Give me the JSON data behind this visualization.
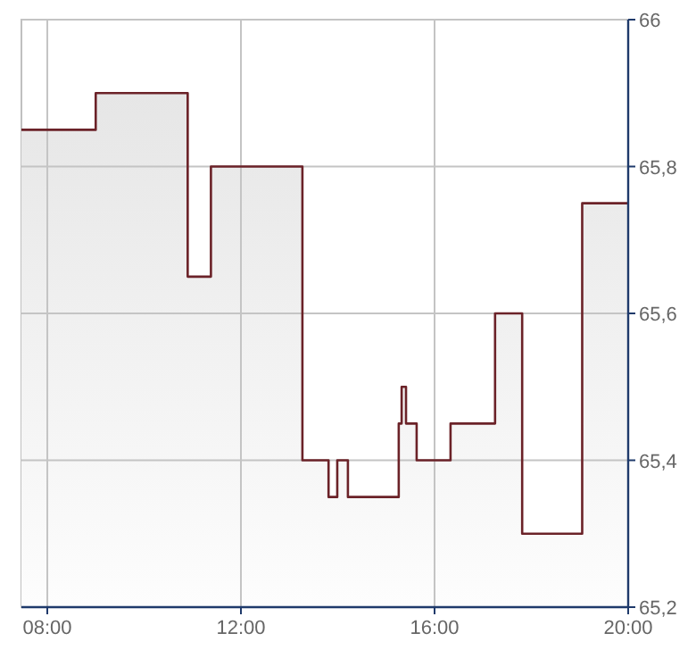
{
  "chart_data": {
    "type": "area",
    "x": [
      7.465,
      9.0,
      9.0,
      10.9,
      10.9,
      11.38,
      11.38,
      13.27,
      13.27,
      13.81,
      13.81,
      13.99,
      13.99,
      14.21,
      14.21,
      15.26,
      15.26,
      15.32,
      15.32,
      15.41,
      15.41,
      15.63,
      15.63,
      16.33,
      16.33,
      17.25,
      17.25,
      17.81,
      17.81,
      19.05,
      19.05,
      20.0
    ],
    "series": [
      {
        "color": "#6b2228",
        "values": [
          65.85,
          65.85,
          65.9,
          65.9,
          65.65,
          65.65,
          65.8,
          65.8,
          65.4,
          65.4,
          65.35,
          65.35,
          65.4,
          65.4,
          65.35,
          65.35,
          65.45,
          65.45,
          65.5,
          65.5,
          65.45,
          65.45,
          65.4,
          65.4,
          65.45,
          65.45,
          65.6,
          65.6,
          65.3,
          65.3,
          65.75,
          65.75
        ]
      }
    ],
    "xlim": [
      7.465,
      20
    ],
    "xticks": [
      {
        "value": 8,
        "label": "08:00"
      },
      {
        "value": 12,
        "label": "12:00"
      },
      {
        "value": 16,
        "label": "16:00"
      },
      {
        "value": 20,
        "label": "20:00"
      }
    ],
    "ylim": [
      65.2,
      66
    ],
    "yticks": [
      {
        "value": 65.2,
        "label": "65,2"
      },
      {
        "value": 65.4,
        "label": "65,4"
      },
      {
        "value": 65.6,
        "label": "65,6"
      },
      {
        "value": 65.8,
        "label": "65,8"
      },
      {
        "value": 66,
        "label": "66"
      }
    ],
    "grid": true
  }
}
